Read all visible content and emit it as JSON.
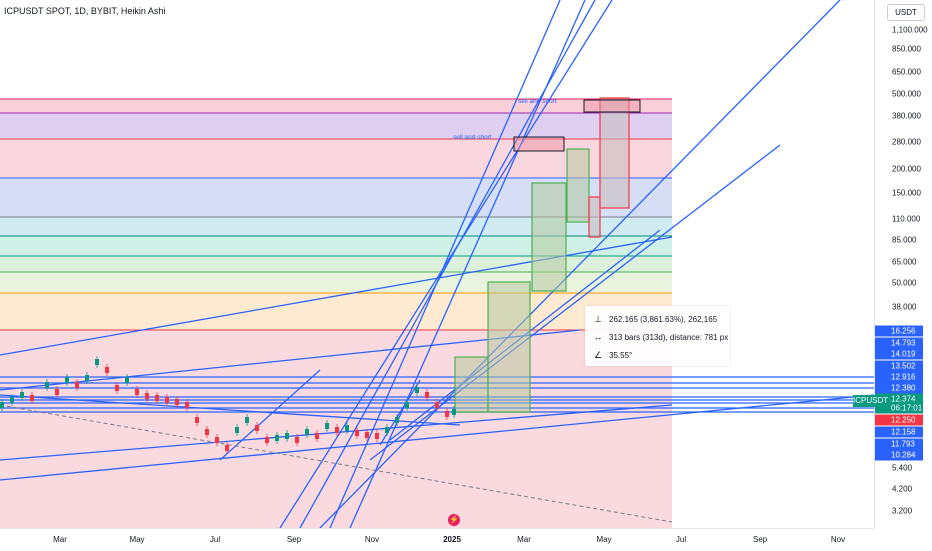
{
  "title": "ICPUSDT SPOT, 1D, BYBIT, Heikin Ashi",
  "currency": "USDT",
  "price_axis": [
    "1,100.000",
    "850.000",
    "650.000",
    "500.000",
    "380.000",
    "280.000",
    "200.000",
    "150.000",
    "110.000",
    "85.000",
    "65.000",
    "50.000",
    "38.000",
    "5.400",
    "4.200",
    "3.200"
  ],
  "price_tags": [
    {
      "text": "16.256",
      "color": "#2962ff"
    },
    {
      "text": "14.793",
      "color": "#2962ff"
    },
    {
      "text": "14.019",
      "color": "#2962ff"
    },
    {
      "text": "13.502",
      "color": "#2962ff"
    },
    {
      "text": "12.916",
      "color": "#2962ff"
    },
    {
      "text": "12.380",
      "color": "#2962ff"
    },
    {
      "text": "12.374",
      "color": "#089981"
    },
    {
      "text": "06:17:01",
      "color": "#089981"
    },
    {
      "text": "12.250",
      "color": "#f23645"
    },
    {
      "text": "12.158",
      "color": "#2962ff"
    },
    {
      "text": "11.793",
      "color": "#2962ff"
    },
    {
      "text": "10.284",
      "color": "#2962ff"
    }
  ],
  "symbol_tag": "ICPUSDT",
  "time_axis": [
    "Mar",
    "May",
    "Jul",
    "Sep",
    "Nov",
    "2025",
    "Mar",
    "May",
    "Jul",
    "Sep",
    "Nov"
  ],
  "measure": {
    "price_change": "262.165 (3,861.63%), 262,165",
    "bars": "313 bars (313d), distance: 781 px",
    "angle": "35.55°"
  },
  "annotations": {
    "sell1": "sell and short",
    "sell2": "sell and short"
  },
  "colors": {
    "accent": "#2962ff",
    "up": "#089981",
    "down": "#f23645"
  }
}
